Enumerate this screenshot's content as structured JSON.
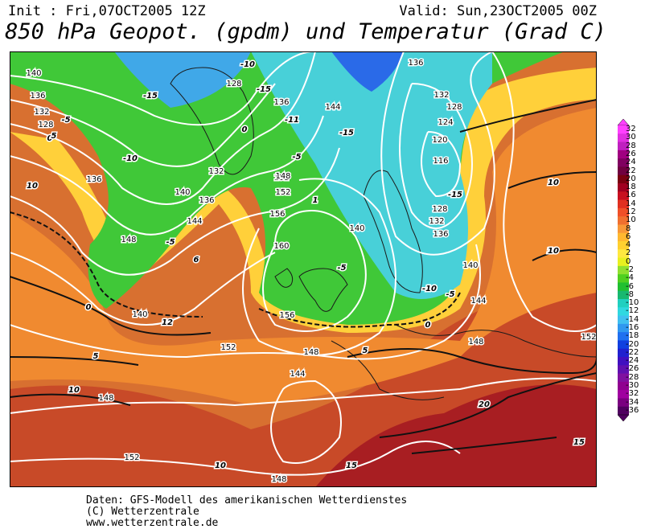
{
  "header": {
    "init": "Init : Fri,07OCT2005 12Z",
    "valid": "Valid: Sun,23OCT2005 00Z",
    "title": "850 hPa Geopot. (gpdm) und Temperatur (Grad C)"
  },
  "footer": {
    "line1": "Daten: GFS-Modell des amerikanischen Wetterdienstes",
    "line2": "(C) Wetterzentrale",
    "line3": "www.wetterzentrale.de"
  },
  "legend": {
    "labels": [
      "32",
      "30",
      "28",
      "26",
      "24",
      "22",
      "20",
      "18",
      "16",
      "14",
      "12",
      "10",
      "8",
      "6",
      "4",
      "2",
      "0",
      "-2",
      "-4",
      "-6",
      "-8",
      "-10",
      "-12",
      "-14",
      "-16",
      "-18",
      "-20",
      "-22",
      "-24",
      "-26",
      "-28",
      "-30",
      "-32",
      "-34",
      "-36"
    ],
    "colors": [
      "#ff40ff",
      "#e030e0",
      "#c020c0",
      "#a00080",
      "#800060",
      "#700040",
      "#7a0010",
      "#a00020",
      "#c81020",
      "#e03020",
      "#f05028",
      "#f07030",
      "#f89838",
      "#ffb830",
      "#ffd030",
      "#ffe840",
      "#e8f020",
      "#90e030",
      "#50d020",
      "#20c030",
      "#18b870",
      "#20d0c0",
      "#30d8e0",
      "#40c0f0",
      "#3098f0",
      "#2070f0",
      "#1040e0",
      "#2020d0",
      "#4010c0",
      "#6010b0",
      "#8010a0",
      "#900090",
      "#a000a0",
      "#7a0080",
      "#500060"
    ]
  },
  "map": {
    "geopotential_labels": [
      "140",
      "136",
      "132",
      "128",
      "136",
      "140",
      "144",
      "148",
      "152",
      "156",
      "160",
      "156",
      "152",
      "148",
      "144",
      "148",
      "152",
      "140",
      "136",
      "132",
      "128",
      "124",
      "120",
      "116",
      "128",
      "132",
      "136",
      "140",
      "144",
      "148",
      "152",
      "144",
      "148",
      "152",
      "128",
      "136",
      "144",
      "132",
      "136",
      "148",
      "140"
    ],
    "temperature_labels": [
      "-5",
      "0",
      "-10",
      "10",
      "5",
      "-10",
      "-5",
      "6",
      "0",
      "5",
      "10",
      "12",
      "-15",
      "-10",
      "-15",
      "0",
      "-11",
      "-5",
      "-15",
      "1",
      "-5",
      "-10",
      "-15",
      "-10",
      "10",
      "10",
      "0",
      "-5",
      "5",
      "10",
      "15",
      "20",
      "15",
      "10",
      "5"
    ]
  }
}
